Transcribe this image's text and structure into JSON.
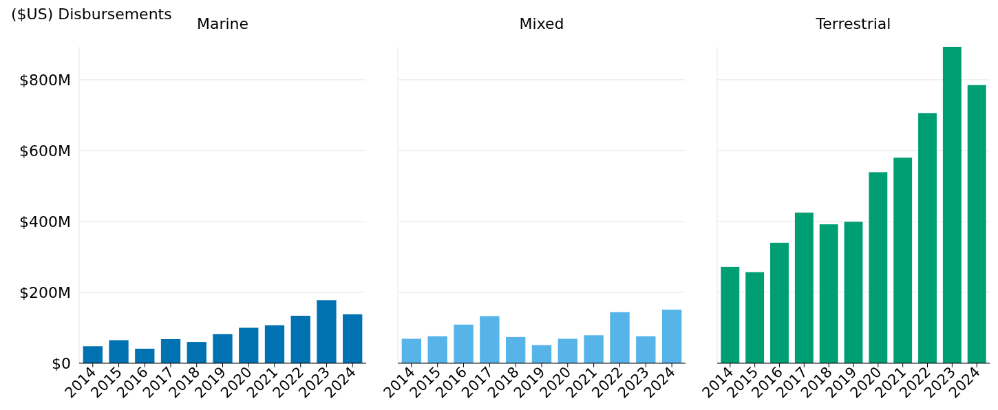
{
  "chart_data": [
    {
      "type": "bar",
      "title": "Marine",
      "ylabel": "($US) Disbursements",
      "categories": [
        "2014",
        "2015",
        "2016",
        "2017",
        "2018",
        "2019",
        "2020",
        "2021",
        "2022",
        "2023",
        "2024"
      ],
      "color": "#0072b2",
      "values": [
        48,
        65,
        41,
        68,
        60,
        82,
        100,
        107,
        134,
        178,
        138
      ],
      "ylim": [
        0,
        893
      ],
      "yticks": [
        {
          "value": 0,
          "label": "$0"
        },
        {
          "value": 200,
          "label": "$200M"
        },
        {
          "value": 400,
          "label": "$400M"
        },
        {
          "value": 600,
          "label": "$600M"
        },
        {
          "value": 800,
          "label": "$800M"
        }
      ],
      "grid": "y"
    },
    {
      "type": "bar",
      "title": "Mixed",
      "categories": [
        "2014",
        "2015",
        "2016",
        "2017",
        "2018",
        "2019",
        "2020",
        "2021",
        "2022",
        "2023",
        "2024"
      ],
      "color": "#56b4e9",
      "values": [
        69,
        76,
        109,
        133,
        74,
        51,
        69,
        79,
        144,
        76,
        151
      ],
      "ylim": [
        0,
        893
      ],
      "yticks": [
        0,
        200,
        400,
        600,
        800
      ],
      "grid": "y",
      "tick_labels": "x"
    },
    {
      "type": "bar",
      "title": "Terrestrial",
      "categories": [
        "2014",
        "2015",
        "2016",
        "2017",
        "2018",
        "2019",
        "2020",
        "2021",
        "2022",
        "2023",
        "2024"
      ],
      "color": "#009e73",
      "values": [
        272,
        257,
        340,
        425,
        392,
        399,
        539,
        580,
        706,
        893,
        785
      ],
      "ylim": [
        0,
        893
      ],
      "yticks": [
        0,
        200,
        400,
        600,
        800
      ],
      "grid": "y",
      "tick_labels": "x"
    }
  ]
}
